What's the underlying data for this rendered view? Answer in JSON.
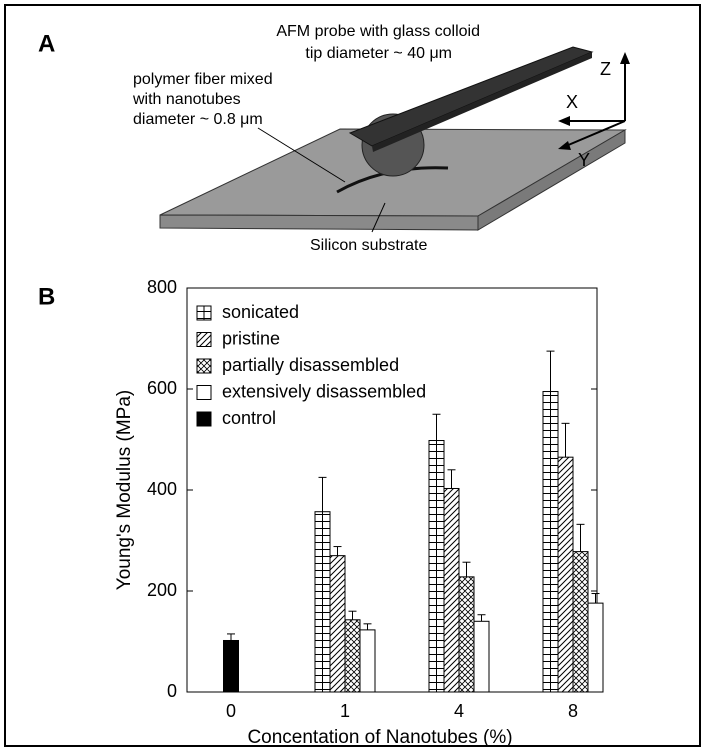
{
  "panel_a": {
    "label": "A",
    "probe_label": [
      "AFM probe with glass colloid",
      "tip diameter ~ 40 μm"
    ],
    "fiber_label": [
      "polymer fiber mixed",
      "with nanotubes",
      "diameter ~ 0.8 μm"
    ],
    "substrate_label": "Silicon substrate",
    "axes": [
      "X",
      "Y",
      "Z"
    ]
  },
  "chart_data": {
    "type": "bar",
    "panel_label": "B",
    "xlabel": "Concentation of Nanotubes (%)",
    "ylabel": "Young's Modulus (MPa)",
    "categories": [
      "0",
      "1",
      "4",
      "8"
    ],
    "series": [
      {
        "name": "sonicated",
        "color": "#ffffff",
        "pattern": "horizontal",
        "values": [
          null,
          357,
          498,
          595
        ],
        "errors": [
          null,
          68,
          52,
          80
        ]
      },
      {
        "name": "pristine",
        "color": "#ffffff",
        "pattern": "diagonal",
        "values": [
          null,
          270,
          403,
          465
        ],
        "errors": [
          null,
          18,
          37,
          67
        ]
      },
      {
        "name": "partially disassembled",
        "color": "#ffffff",
        "pattern": "cross",
        "values": [
          null,
          143,
          228,
          278
        ],
        "errors": [
          null,
          17,
          29,
          54
        ]
      },
      {
        "name": "extensively disassembled",
        "color": "#ffffff",
        "pattern": "none",
        "values": [
          null,
          123,
          140,
          176
        ],
        "errors": [
          null,
          12,
          13,
          19
        ]
      },
      {
        "name": "control",
        "color": "#000000",
        "pattern": "solid",
        "values": [
          102,
          null,
          null,
          null
        ],
        "errors": [
          13,
          null,
          null,
          null
        ]
      }
    ],
    "ylim": [
      0,
      800
    ],
    "yticks": [
      0,
      200,
      400,
      600,
      800
    ],
    "legend": "upper left"
  }
}
